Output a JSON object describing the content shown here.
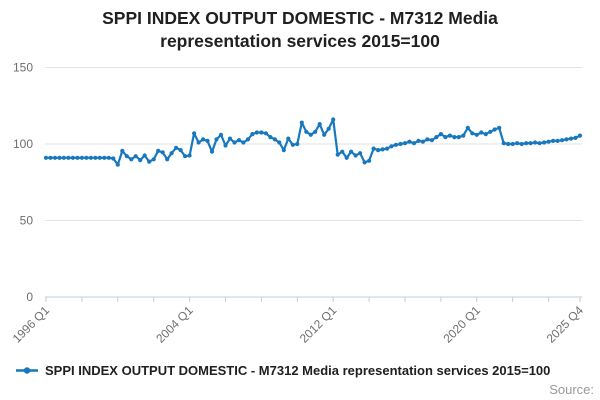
{
  "header": {
    "title_lines": [
      "SPPI INDEX OUTPUT DOMESTIC - M7312 Media",
      "representation services 2015=100"
    ],
    "title_full": "SPPI INDEX OUTPUT DOMESTIC - M7312 Media representation services 2015=100"
  },
  "legend": {
    "series_label": "SPPI INDEX OUTPUT DOMESTIC - M7312 Media representation services 2015=100",
    "marker": "line-with-dot"
  },
  "footer": {
    "source_label": "Source:"
  },
  "colors": {
    "line_color": "#1878bd",
    "grid_color": "#e2e2e2",
    "axis_color": "#c2cdde",
    "tick_label_color": "#6e6e6e",
    "title_color": "#202020",
    "source_color": "#999999"
  },
  "chart_data": {
    "type": "line",
    "title": "SPPI INDEX OUTPUT DOMESTIC - M7312 Media representation services 2015=100",
    "xlabel": "",
    "ylabel": "",
    "ylim": [
      0,
      150
    ],
    "yticks": [
      0,
      50,
      100,
      150
    ],
    "ytick_labels": [
      "0",
      "50",
      "100",
      "150"
    ],
    "grid": "horizontal",
    "legend_position": "bottom-left",
    "frequency": "quarterly",
    "x_start": "1996 Q1",
    "x_end": "2025 Q4",
    "x_labels": [
      "1996 Q1",
      "2004 Q1",
      "2012 Q1",
      "2020 Q1",
      "2025 Q4"
    ],
    "x_label_indices": [
      0,
      32,
      64,
      96,
      119
    ],
    "x_minor_tick_indices": [
      0,
      8,
      16,
      24,
      32,
      40,
      48,
      56,
      64,
      72,
      80,
      88,
      96,
      104,
      112,
      119
    ],
    "categories": [
      "1996 Q1",
      "1996 Q2",
      "1996 Q3",
      "1996 Q4",
      "1997 Q1",
      "1997 Q2",
      "1997 Q3",
      "1997 Q4",
      "1998 Q1",
      "1998 Q2",
      "1998 Q3",
      "1998 Q4",
      "1999 Q1",
      "1999 Q2",
      "1999 Q3",
      "1999 Q4",
      "2000 Q1",
      "2000 Q2",
      "2000 Q3",
      "2000 Q4",
      "2001 Q1",
      "2001 Q2",
      "2001 Q3",
      "2001 Q4",
      "2002 Q1",
      "2002 Q2",
      "2002 Q3",
      "2002 Q4",
      "2003 Q1",
      "2003 Q2",
      "2003 Q3",
      "2003 Q4",
      "2004 Q1",
      "2004 Q2",
      "2004 Q3",
      "2004 Q4",
      "2005 Q1",
      "2005 Q2",
      "2005 Q3",
      "2005 Q4",
      "2006 Q1",
      "2006 Q2",
      "2006 Q3",
      "2006 Q4",
      "2007 Q1",
      "2007 Q2",
      "2007 Q3",
      "2007 Q4",
      "2008 Q1",
      "2008 Q2",
      "2008 Q3",
      "2008 Q4",
      "2009 Q1",
      "2009 Q2",
      "2009 Q3",
      "2009 Q4",
      "2010 Q1",
      "2010 Q2",
      "2010 Q3",
      "2010 Q4",
      "2011 Q1",
      "2011 Q2",
      "2011 Q3",
      "2011 Q4",
      "2012 Q1",
      "2012 Q2",
      "2012 Q3",
      "2012 Q4",
      "2013 Q1",
      "2013 Q2",
      "2013 Q3",
      "2013 Q4",
      "2014 Q1",
      "2014 Q2",
      "2014 Q3",
      "2014 Q4",
      "2015 Q1",
      "2015 Q2",
      "2015 Q3",
      "2015 Q4",
      "2016 Q1",
      "2016 Q2",
      "2016 Q3",
      "2016 Q4",
      "2017 Q1",
      "2017 Q2",
      "2017 Q3",
      "2017 Q4",
      "2018 Q1",
      "2018 Q2",
      "2018 Q3",
      "2018 Q4",
      "2019 Q1",
      "2019 Q2",
      "2019 Q3",
      "2019 Q4",
      "2020 Q1",
      "2020 Q2",
      "2020 Q3",
      "2020 Q4",
      "2021 Q1",
      "2021 Q2",
      "2021 Q3",
      "2021 Q4",
      "2022 Q1",
      "2022 Q2",
      "2022 Q3",
      "2022 Q4",
      "2023 Q1",
      "2023 Q2",
      "2023 Q3",
      "2023 Q4",
      "2024 Q1",
      "2024 Q2",
      "2024 Q3",
      "2024 Q4",
      "2025 Q1",
      "2025 Q2",
      "2025 Q3",
      "2025 Q4"
    ],
    "values": [
      91,
      91,
      91,
      91,
      91,
      91,
      91,
      91,
      91,
      91,
      91,
      91,
      91,
      91,
      91,
      90.5,
      86.5,
      95.5,
      92,
      90,
      92,
      89.5,
      92.5,
      88.5,
      90,
      95.5,
      94.5,
      90,
      94,
      97.5,
      96,
      92,
      92.5,
      107,
      101,
      103,
      102,
      95,
      103,
      106,
      99,
      103.5,
      101,
      102.5,
      101,
      103,
      106.5,
      107.5,
      107.5,
      107,
      104.5,
      103,
      101,
      96,
      103.5,
      99.5,
      100,
      114,
      108,
      106,
      108,
      113,
      106,
      110,
      116,
      93,
      95,
      91,
      95,
      92.5,
      94,
      88,
      89,
      97,
      96,
      96.5,
      97,
      98.5,
      99.5,
      100,
      100.5,
      101.5,
      100.5,
      102,
      101.5,
      103,
      102.5,
      104.5,
      106.5,
      104.5,
      105.5,
      104.5,
      104.5,
      105.5,
      110.5,
      107,
      106,
      107.5,
      106.5,
      108,
      109.5,
      110.5,
      100.5,
      100,
      100,
      100.5,
      100,
      100.5,
      100.5,
      101,
      100.5,
      101,
      101.5,
      102,
      102,
      102.5,
      103,
      103.5,
      104,
      105.5
    ]
  }
}
